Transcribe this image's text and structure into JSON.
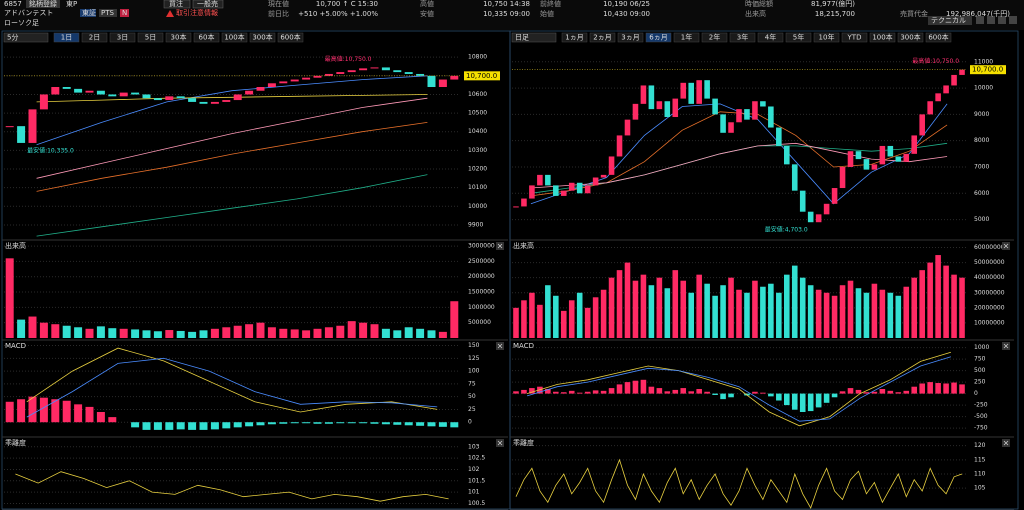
{
  "header": {
    "code": "6857",
    "register": "銘柄登録",
    "market": "東P",
    "name": "アドバンテスト",
    "exchanges": [
      "東証",
      "PTS",
      "N"
    ],
    "chart_kind": "ローソク足",
    "buy": "買注",
    "sell": "一般売",
    "notice": "取引注意情報",
    "technical": "テクニカル",
    "quotes": [
      {
        "label": "現在値",
        "text": "10,700 ↑  C  15:30"
      },
      {
        "label": "前日比",
        "text": "+510  +5.00%  +1.00%"
      },
      {
        "label": "高値",
        "text": "10,750 14:38"
      },
      {
        "label": "安値",
        "text": "10,335 09:00"
      },
      {
        "label": "前終値",
        "text": "10,190 06/25"
      },
      {
        "label": "始値",
        "text": "10,430 09:00"
      },
      {
        "label": "時価総額",
        "text": "81,977(億円)"
      },
      {
        "label": "出来高",
        "text": "18,215,700"
      },
      {
        "label": "売買代金",
        "text": "192,986,047(千円)"
      }
    ]
  },
  "toolbars": [
    {
      "period": "5分",
      "tabs": [
        "1日",
        "2日",
        "3日",
        "5日",
        "30本",
        "60本",
        "100本",
        "300本",
        "600本"
      ],
      "active": 0
    },
    {
      "period": "日足",
      "tabs": [
        "1ヵ月",
        "2ヵ月",
        "3ヵ月",
        "6ヵ月",
        "1年",
        "2年",
        "3年",
        "4年",
        "5年",
        "10年",
        "YTD",
        "100本",
        "300本",
        "600本"
      ],
      "active": 3
    }
  ],
  "chart_data": [
    {
      "type": "candlestick",
      "color_up": "#ff2a64",
      "color_down": "#33e0d2",
      "price_label": "10,700.0",
      "high_label": "最高値:10,750.0",
      "low_label": "最安値:10,335.0",
      "values": [
        10430,
        10340,
        10520,
        10600,
        10640,
        10630,
        10610,
        10620,
        10600,
        10590,
        10610,
        10600,
        10580,
        10570,
        10590,
        10580,
        10560,
        10550,
        10560,
        10570,
        10600,
        10620,
        10640,
        10660,
        10670,
        10680,
        10690,
        10700,
        10710,
        10720,
        10730,
        10740,
        10745,
        10730,
        10720,
        10710,
        10700,
        10640,
        10680,
        10700
      ],
      "lines": [
        {
          "color": "#4a8cff",
          "values": [
            10330,
            10450,
            10560,
            10620,
            10650,
            10680,
            10700
          ]
        },
        {
          "color": "#e8d040",
          "values": [
            10560,
            10570,
            10580,
            10585,
            10590,
            10595,
            10600
          ]
        },
        {
          "color": "#ff9ab8",
          "values": [
            10150,
            10230,
            10310,
            10390,
            10460,
            10530,
            10580
          ]
        },
        {
          "color": "#e8702a",
          "values": [
            10080,
            10150,
            10210,
            10280,
            10340,
            10400,
            10450
          ]
        },
        {
          "color": "#20b08a",
          "values": [
            9840,
            9890,
            9940,
            9990,
            10040,
            10100,
            10170
          ]
        }
      ],
      "ylim": [
        9830,
        10860
      ],
      "yticks": [
        9900,
        10000,
        10100,
        10200,
        10300,
        10400,
        10500,
        10600,
        10700,
        10800
      ]
    },
    {
      "type": "bar",
      "title": "出来高",
      "values": [
        2600000,
        600000,
        700000,
        500000,
        450000,
        400000,
        350000,
        300000,
        380000,
        320000,
        300000,
        280000,
        250000,
        220000,
        260000,
        230000,
        200000,
        250000,
        300000,
        350000,
        400000,
        450000,
        500000,
        350000,
        300000,
        280000,
        250000,
        300000,
        350000,
        400000,
        550000,
        500000,
        450000,
        300000,
        250000,
        350000,
        300000,
        250000,
        200000,
        1200000
      ],
      "ylim": [
        0,
        3100000
      ],
      "yticks": [
        500000,
        1000000,
        1500000,
        2000000,
        2500000,
        3000000
      ]
    },
    {
      "type": "macd",
      "title": "MACD",
      "values": [
        40,
        45,
        50,
        48,
        45,
        42,
        35,
        30,
        20,
        10,
        0,
        -10,
        -15,
        -15,
        -15,
        -14,
        -15,
        -15,
        -14,
        -12,
        -10,
        -8,
        -6,
        -4,
        -3,
        -2,
        -2,
        -3,
        -3,
        -2,
        -2,
        -2,
        -3,
        -4,
        -5,
        -6,
        -7,
        -8,
        -9,
        -10
      ],
      "lines": [
        {
          "color": "#e8d040",
          "values": [
            40,
            100,
            145,
            120,
            80,
            40,
            20,
            35,
            40,
            25
          ]
        },
        {
          "color": "#4a8cff",
          "values": [
            10,
            60,
            115,
            125,
            100,
            60,
            35,
            40,
            38,
            30
          ]
        }
      ],
      "ylim": [
        -25,
        155
      ],
      "yticks": [
        0,
        25,
        50,
        75,
        100,
        125,
        150
      ]
    },
    {
      "type": "line",
      "title": "乖離度",
      "lines": [
        {
          "color": "#e8d040",
          "values": [
            101.8,
            101.4,
            101.9,
            101.6,
            101.2,
            101.5,
            101.0,
            100.9,
            101.3,
            101.1,
            100.8,
            100.9,
            101.0,
            100.7,
            100.9,
            100.8,
            100.6,
            100.8,
            100.9,
            100.7
          ]
        }
      ],
      "ylim": [
        100.3,
        103.3
      ],
      "yticks": [
        100.5,
        101.0,
        101.5,
        102.0,
        102.5,
        103.0
      ]
    },
    {
      "type": "candlestick",
      "color_up": "#ff2a64",
      "color_down": "#33e0d2",
      "price_label": "10,700.0",
      "high_label": "最高値:10,750.0",
      "low_label": "最安値:4,703.0",
      "values": [
        5500,
        5800,
        6300,
        6700,
        6300,
        5900,
        6100,
        6400,
        6000,
        6300,
        6600,
        6700,
        7400,
        8200,
        8800,
        9400,
        10100,
        9200,
        9500,
        8900,
        9600,
        10200,
        9400,
        10300,
        9600,
        9000,
        8300,
        8700,
        9200,
        8800,
        9500,
        9300,
        8500,
        7800,
        7100,
        6100,
        5300,
        4900,
        5200,
        5600,
        6200,
        7000,
        7600,
        7300,
        6900,
        7100,
        7800,
        7400,
        7200,
        7500,
        8200,
        9000,
        9500,
        9800,
        10100,
        10500,
        10700
      ],
      "lines": [
        {
          "color": "#4a8cff",
          "values": [
            5600,
            6100,
            6600,
            8200,
            9300,
            9400,
            8800,
            7200,
            5600,
            6800,
            7500,
            9400
          ]
        },
        {
          "color": "#e8702a",
          "values": [
            5900,
            6100,
            6400,
            7200,
            8400,
            9100,
            9000,
            8200,
            7000,
            7100,
            7600,
            8600
          ]
        },
        {
          "color": "#20b08a",
          "values": [
            6000,
            6200,
            6400,
            6700,
            7100,
            7500,
            7800,
            7800,
            7700,
            7600,
            7700,
            7900
          ]
        },
        {
          "color": "#ff9ab8",
          "values": [
            6200,
            6300,
            6400,
            6700,
            7100,
            7500,
            7800,
            7900,
            7600,
            7300,
            7200,
            7400
          ]
        }
      ],
      "ylim": [
        4300,
        11600
      ],
      "yticks": [
        5000,
        6000,
        7000,
        8000,
        9000,
        10000,
        11000
      ]
    },
    {
      "type": "bar",
      "title": "出来高",
      "values": [
        20000000,
        25000000,
        30000000,
        22000000,
        35000000,
        28000000,
        18000000,
        25000000,
        30000000,
        20000000,
        27000000,
        32000000,
        40000000,
        45000000,
        50000000,
        38000000,
        42000000,
        35000000,
        40000000,
        33000000,
        45000000,
        38000000,
        30000000,
        42000000,
        36000000,
        28000000,
        35000000,
        40000000,
        32000000,
        30000000,
        38000000,
        34000000,
        36000000,
        30000000,
        42000000,
        48000000,
        40000000,
        35000000,
        32000000,
        30000000,
        28000000,
        35000000,
        38000000,
        33000000,
        30000000,
        36000000,
        32000000,
        30000000,
        28000000,
        34000000,
        40000000,
        45000000,
        50000000,
        55000000,
        48000000,
        42000000,
        40000000
      ],
      "ylim": [
        0,
        63000000
      ],
      "yticks": [
        10000000,
        20000000,
        30000000,
        40000000,
        50000000,
        60000000
      ]
    },
    {
      "type": "macd",
      "title": "MACD",
      "values": [
        50,
        80,
        120,
        150,
        100,
        40,
        30,
        60,
        20,
        40,
        70,
        60,
        120,
        200,
        250,
        280,
        300,
        150,
        120,
        50,
        80,
        120,
        50,
        100,
        40,
        -30,
        -120,
        -80,
        0,
        -40,
        40,
        20,
        -60,
        -150,
        -250,
        -350,
        -400,
        -380,
        -300,
        -200,
        -80,
        50,
        120,
        80,
        30,
        40,
        100,
        60,
        30,
        60,
        150,
        220,
        250,
        230,
        220,
        240,
        200
      ],
      "lines": [
        {
          "color": "#e8d040",
          "values": [
            0,
            200,
            300,
            450,
            600,
            500,
            300,
            100,
            -400,
            -700,
            -500,
            0,
            300,
            700,
            900
          ]
        },
        {
          "color": "#4a8cff",
          "values": [
            -50,
            150,
            250,
            400,
            550,
            500,
            350,
            150,
            -250,
            -600,
            -550,
            -100,
            250,
            600,
            800
          ]
        }
      ],
      "ylim": [
        -900,
        1100
      ],
      "yticks": [
        -750,
        -500,
        -250,
        0,
        250,
        500,
        750,
        1000
      ]
    },
    {
      "type": "line",
      "title": "乖離度",
      "lines": [
        {
          "color": "#e8d040",
          "values": [
            102,
            108,
            112,
            104,
            100,
            106,
            110,
            103,
            107,
            112,
            104,
            100,
            108,
            115,
            106,
            101,
            110,
            104,
            100,
            107,
            112,
            103,
            108,
            101,
            106,
            110,
            103,
            99,
            104,
            112,
            106,
            101,
            108,
            104,
            100,
            110,
            103,
            98,
            106,
            112,
            104,
            101,
            108,
            111,
            103,
            107,
            100,
            105,
            110,
            102,
            108,
            104,
            112,
            106,
            103,
            109,
            110
          ]
        }
      ],
      "ylim": [
        98,
        122
      ],
      "yticks": [
        105,
        110,
        115,
        120
      ]
    }
  ]
}
